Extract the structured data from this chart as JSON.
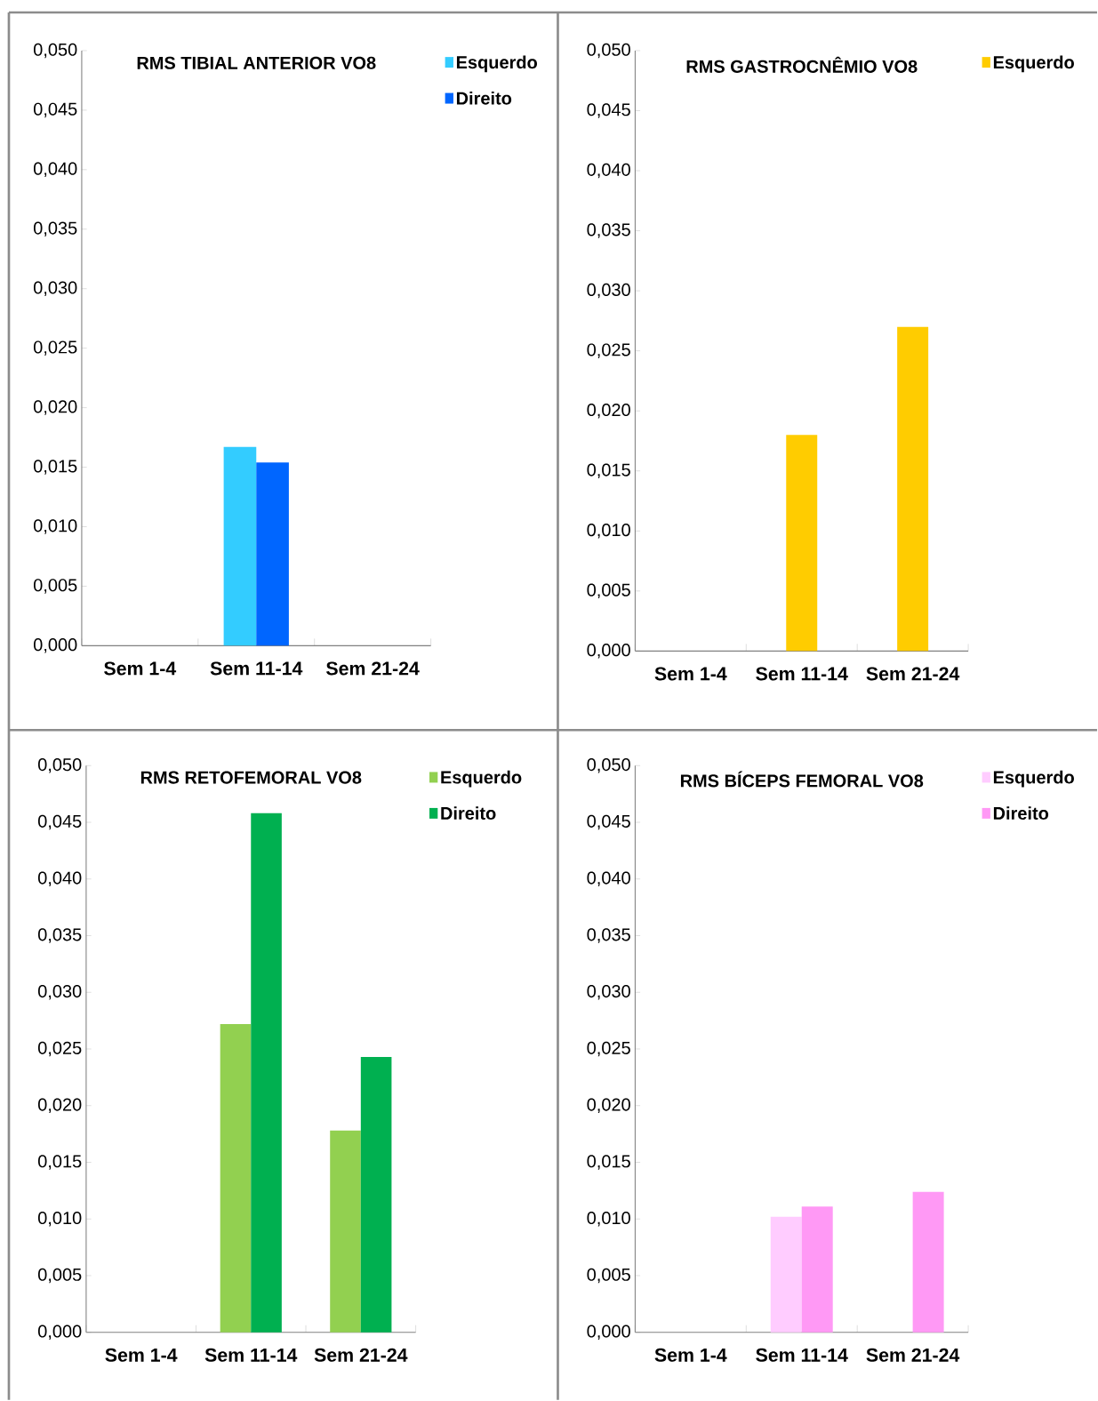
{
  "chart_data": [
    {
      "type": "bar",
      "title": "RMS  TIBIAL  ANTERIOR  VO8",
      "categories": [
        "Sem 1-4",
        "Sem 11-14",
        "Sem 21-24"
      ],
      "series": [
        {
          "name": "Esquerdo",
          "color": "#33ccff",
          "values": [
            null,
            0.0167,
            null
          ]
        },
        {
          "name": "Direito",
          "color": "#0066ff",
          "values": [
            null,
            0.0154,
            null
          ]
        }
      ],
      "ylim": [
        0,
        0.05
      ],
      "yticks": [
        {
          "value": 0,
          "label": "0,000"
        },
        {
          "value": 0.005,
          "label": "0,005"
        },
        {
          "value": 0.01,
          "label": "0,010"
        },
        {
          "value": 0.015,
          "label": "0,015"
        },
        {
          "value": 0.02,
          "label": "0,020"
        },
        {
          "value": 0.025,
          "label": "0,025"
        },
        {
          "value": 0.03,
          "label": "0,030"
        },
        {
          "value": 0.035,
          "label": "0,035"
        },
        {
          "value": 0.04,
          "label": "0,040"
        },
        {
          "value": 0.045,
          "label": "0,045"
        },
        {
          "value": 0.05,
          "label": "0,050"
        }
      ],
      "legend": "top right"
    },
    {
      "type": "bar",
      "title": "RMS GASTROCNÊMIO VO8",
      "categories": [
        "Sem 1-4",
        "Sem 11-14",
        "Sem 21-24"
      ],
      "series": [
        {
          "name": "Esquerdo",
          "color": "#ffcc00",
          "values": [
            null,
            0.018,
            0.027
          ]
        }
      ],
      "ylim": [
        0,
        0.05
      ],
      "yticks": [
        {
          "value": 0,
          "label": "0,000"
        },
        {
          "value": 0.005,
          "label": "0,005"
        },
        {
          "value": 0.01,
          "label": "0,010"
        },
        {
          "value": 0.015,
          "label": "0,015"
        },
        {
          "value": 0.02,
          "label": "0,020"
        },
        {
          "value": 0.025,
          "label": "0,025"
        },
        {
          "value": 0.03,
          "label": "0,030"
        },
        {
          "value": 0.035,
          "label": "0,035"
        },
        {
          "value": 0.04,
          "label": "0,040"
        },
        {
          "value": 0.045,
          "label": "0,045"
        },
        {
          "value": 0.05,
          "label": "0,050"
        }
      ],
      "legend": "top right"
    },
    {
      "type": "bar",
      "title": "RMS RETOFEMORAL VO8",
      "categories": [
        "Sem 1-4",
        "Sem 11-14",
        "Sem 21-24"
      ],
      "series": [
        {
          "name": "Esquerdo",
          "color": "#92d050",
          "values": [
            null,
            0.0272,
            0.0178
          ]
        },
        {
          "name": "Direito",
          "color": "#00b050",
          "values": [
            null,
            0.0458,
            0.0243
          ]
        }
      ],
      "ylim": [
        0,
        0.05
      ],
      "yticks": [
        {
          "value": 0,
          "label": "0,000"
        },
        {
          "value": 0.005,
          "label": "0,005"
        },
        {
          "value": 0.01,
          "label": "0,010"
        },
        {
          "value": 0.015,
          "label": "0,015"
        },
        {
          "value": 0.02,
          "label": "0,020"
        },
        {
          "value": 0.025,
          "label": "0,025"
        },
        {
          "value": 0.03,
          "label": "0,030"
        },
        {
          "value": 0.035,
          "label": "0,035"
        },
        {
          "value": 0.04,
          "label": "0,040"
        },
        {
          "value": 0.045,
          "label": "0,045"
        },
        {
          "value": 0.05,
          "label": "0,050"
        }
      ],
      "legend": "top right"
    },
    {
      "type": "bar",
      "title": "RMS BÍCEPS FEMORAL VO8",
      "categories": [
        "Sem 1-4",
        "Sem 11-14",
        "Sem 21-24"
      ],
      "series": [
        {
          "name": "Esquerdo",
          "color": "#ffccff",
          "values": [
            null,
            0.0102,
            null
          ]
        },
        {
          "name": "Direito",
          "color": "#ff99f5",
          "values": [
            null,
            0.0111,
            0.0124
          ]
        }
      ],
      "ylim": [
        0,
        0.05
      ],
      "yticks": [
        {
          "value": 0,
          "label": "0,000"
        },
        {
          "value": 0.005,
          "label": "0,005"
        },
        {
          "value": 0.01,
          "label": "0,010"
        },
        {
          "value": 0.015,
          "label": "0,015"
        },
        {
          "value": 0.02,
          "label": "0,020"
        },
        {
          "value": 0.025,
          "label": "0,025"
        },
        {
          "value": 0.03,
          "label": "0,030"
        },
        {
          "value": 0.035,
          "label": "0,035"
        },
        {
          "value": 0.04,
          "label": "0,040"
        },
        {
          "value": 0.045,
          "label": "0,045"
        },
        {
          "value": 0.05,
          "label": "0,050"
        }
      ],
      "legend": "top right"
    }
  ]
}
